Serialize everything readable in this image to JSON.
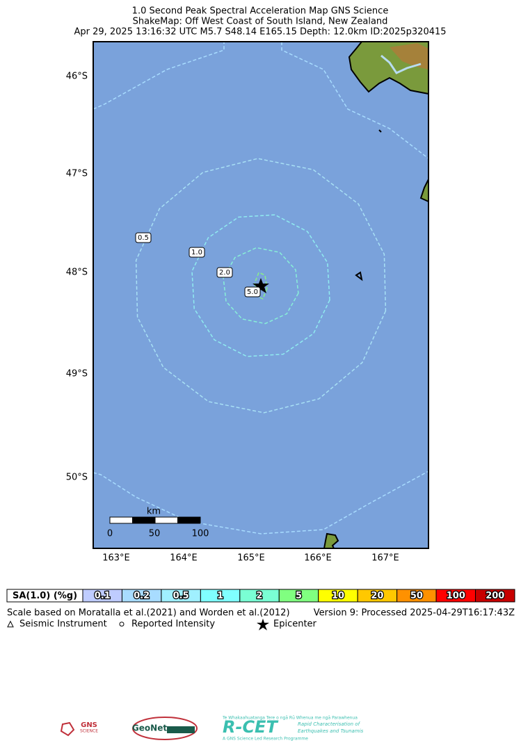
{
  "header": {
    "title": [
      "1.0 Second Peak Spectral Acceleration Map GNS Science",
      "ShakeMap: Off West Coast of South Island, New Zealand",
      "Apr 29, 2025 13:16:32 UTC M5.7 S48.14 E165.15 Depth: 12.0km ID:2025p320415"
    ]
  },
  "map": {
    "background": "#7aa2db",
    "lat_labels": [
      "46°S",
      "47°S",
      "48°S",
      "49°S",
      "50°S"
    ],
    "lon_labels": [
      "163°E",
      "164°E",
      "165°E",
      "166°E",
      "167°E"
    ],
    "contours": [
      {
        "label": "0.5",
        "color": "#a8e0f5"
      },
      {
        "label": "1.0",
        "color": "#90ecf0"
      },
      {
        "label": "2.0",
        "color": "#88f0d8"
      },
      {
        "label": "5.0",
        "color": "#88f088"
      }
    ],
    "scale_bar": {
      "unit": "km",
      "ticks": [
        "0",
        "50",
        "100"
      ]
    }
  },
  "legend": {
    "title": "SA(1.0) (%g)",
    "levels": [
      {
        "label": "0.1",
        "color": "#bfccff"
      },
      {
        "label": "0.2",
        "color": "#a8dcff"
      },
      {
        "label": "0.5",
        "color": "#a0f0ff"
      },
      {
        "label": "1",
        "color": "#80ffff"
      },
      {
        "label": "2",
        "color": "#7affd4"
      },
      {
        "label": "5",
        "color": "#80ff80"
      },
      {
        "label": "10",
        "color": "#ffff00"
      },
      {
        "label": "20",
        "color": "#ffc800"
      },
      {
        "label": "50",
        "color": "#ff9100"
      },
      {
        "label": "100",
        "color": "#ff0000"
      },
      {
        "label": "200",
        "color": "#c80000"
      }
    ]
  },
  "footer": {
    "scale_note": "Scale based on Moratalla et al.(2021) and Worden et al.(2012)",
    "version": "Version 9: Processed 2025-04-29T16:17:43Z",
    "symbols": [
      "Seismic Instrument",
      "Reported Intensity",
      "Epicenter"
    ]
  },
  "logos": {
    "gns": "GNS",
    "gns_sub": "SCIENCE",
    "geonet": "GeoNet",
    "rcet": "R-CET",
    "rcet_top": "Te Whakaahuatanga Tere o ngā Rū Whenua me ngā Parawhenua",
    "rcet_side": [
      "Rapid Characterisation of",
      "Earthquakes and Tsunamis"
    ],
    "rcet_bottom": "A GNS Science Led Research Programme"
  }
}
